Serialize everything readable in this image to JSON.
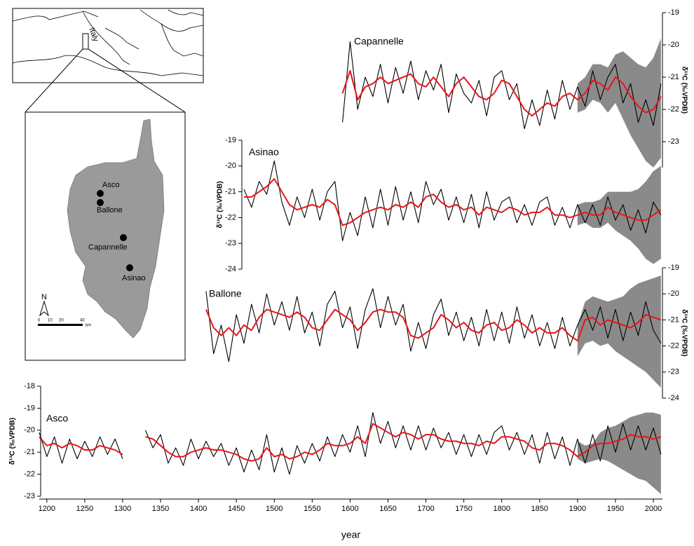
{
  "chart_data": [
    {
      "type": "line",
      "title": "Capannelle",
      "ylabel": "δ¹³C (‰VPDB)",
      "xlim": [
        1190,
        2012
      ],
      "ylim": [
        -23.8,
        -19
      ],
      "yticks": [
        -19,
        -20,
        -21,
        -22,
        -23
      ],
      "x": [
        1590,
        1600,
        1610,
        1620,
        1630,
        1640,
        1650,
        1660,
        1670,
        1680,
        1690,
        1700,
        1710,
        1720,
        1730,
        1740,
        1750,
        1760,
        1770,
        1780,
        1790,
        1800,
        1810,
        1820,
        1830,
        1840,
        1850,
        1860,
        1870,
        1880,
        1890,
        1900,
        1910,
        1920,
        1930,
        1940,
        1950,
        1960,
        1970,
        1980,
        1990,
        2000,
        2010
      ],
      "series": [
        {
          "color": "#000000",
          "values": [
            -22.4,
            -19.9,
            -22.0,
            -21.0,
            -21.6,
            -20.6,
            -21.8,
            -20.7,
            -21.5,
            -20.5,
            -21.7,
            -20.8,
            -21.4,
            -20.6,
            -22.1,
            -20.9,
            -21.5,
            -21.8,
            -21.1,
            -22.2,
            -21.0,
            -20.8,
            -21.7,
            -21.2,
            -22.6,
            -21.7,
            -22.5,
            -21.4,
            -22.3,
            -21.1,
            -22.0,
            -21.3,
            -21.9,
            -20.8,
            -21.7,
            -21.0,
            -20.6,
            -21.8,
            -21.2,
            -22.4,
            -21.7,
            -22.5,
            -21.2
          ]
        },
        {
          "color": "#e8141b",
          "values": [
            -21.5,
            -20.8,
            -21.7,
            -21.3,
            -21.2,
            -21.0,
            -21.2,
            -21.1,
            -21.0,
            -20.9,
            -21.2,
            -21.3,
            -21.0,
            -21.3,
            -21.6,
            -21.2,
            -21.0,
            -21.3,
            -21.6,
            -21.7,
            -21.5,
            -21.1,
            -21.2,
            -21.6,
            -22.0,
            -22.2,
            -22.0,
            -21.8,
            -21.9,
            -21.6,
            -21.5,
            -21.7,
            -21.5,
            -21.1,
            -21.2,
            -21.4,
            -21.0,
            -21.2,
            -21.6,
            -21.9,
            -22.1,
            -22.0,
            -21.6
          ]
        }
      ],
      "band": {
        "color": "#8a8a8a",
        "x": [
          1900,
          1910,
          1920,
          1930,
          1940,
          1950,
          1960,
          1970,
          1980,
          1990,
          2000,
          2010
        ],
        "lower": [
          -22.1,
          -22.0,
          -21.7,
          -21.8,
          -22.1,
          -21.8,
          -22.3,
          -22.8,
          -23.2,
          -23.6,
          -23.8,
          -23.5
        ],
        "upper": [
          -21.2,
          -21.0,
          -20.6,
          -20.6,
          -20.7,
          -20.3,
          -20.2,
          -20.4,
          -20.6,
          -20.7,
          -20.4,
          -19.8
        ]
      }
    },
    {
      "type": "line",
      "title": "Asinao",
      "ylabel": "δ¹³C (‰VPDB)",
      "xlim": [
        1190,
        2012
      ],
      "ylim": [
        -24,
        -19
      ],
      "yticks": [
        -19,
        -20,
        -21,
        -22,
        -23,
        -24
      ],
      "x": [
        1460,
        1470,
        1480,
        1490,
        1500,
        1510,
        1520,
        1530,
        1540,
        1550,
        1560,
        1570,
        1580,
        1590,
        1600,
        1610,
        1620,
        1630,
        1640,
        1650,
        1660,
        1670,
        1680,
        1690,
        1700,
        1710,
        1720,
        1730,
        1740,
        1750,
        1760,
        1770,
        1780,
        1790,
        1800,
        1810,
        1820,
        1830,
        1840,
        1850,
        1860,
        1870,
        1880,
        1890,
        1900,
        1910,
        1920,
        1930,
        1940,
        1950,
        1960,
        1970,
        1980,
        1990,
        2000,
        2010
      ],
      "series": [
        {
          "color": "#000000",
          "values": [
            -20.9,
            -21.6,
            -20.6,
            -21.1,
            -19.8,
            -21.4,
            -22.3,
            -21.2,
            -22.0,
            -20.9,
            -22.1,
            -21.0,
            -20.6,
            -22.9,
            -21.8,
            -22.7,
            -21.2,
            -22.4,
            -20.9,
            -22.3,
            -20.8,
            -22.1,
            -21.0,
            -22.2,
            -20.6,
            -21.5,
            -20.9,
            -22.1,
            -21.2,
            -22.2,
            -21.1,
            -22.4,
            -21.0,
            -22.1,
            -21.4,
            -21.2,
            -22.2,
            -21.5,
            -22.3,
            -21.4,
            -21.2,
            -22.3,
            -21.6,
            -22.4,
            -21.5,
            -22.2,
            -21.5,
            -22.3,
            -21.2,
            -22.1,
            -21.5,
            -22.5,
            -21.7,
            -22.6,
            -21.4,
            -21.9
          ]
        },
        {
          "color": "#e8141b",
          "values": [
            -21.2,
            -21.2,
            -21.0,
            -20.8,
            -20.5,
            -21.0,
            -21.5,
            -21.7,
            -21.6,
            -21.5,
            -21.6,
            -21.3,
            -21.5,
            -22.3,
            -22.2,
            -22.0,
            -21.8,
            -21.7,
            -21.6,
            -21.7,
            -21.5,
            -21.6,
            -21.4,
            -21.6,
            -21.2,
            -21.1,
            -21.4,
            -21.6,
            -21.5,
            -21.7,
            -21.6,
            -21.9,
            -21.6,
            -21.7,
            -21.8,
            -21.6,
            -21.7,
            -21.9,
            -21.8,
            -21.8,
            -21.6,
            -21.9,
            -21.9,
            -22.0,
            -21.9,
            -21.8,
            -21.9,
            -21.9,
            -21.6,
            -21.8,
            -21.9,
            -22.0,
            -22.1,
            -22.1,
            -21.9,
            -21.7
          ]
        }
      ],
      "band": {
        "color": "#8a8a8a",
        "x": [
          1900,
          1910,
          1920,
          1930,
          1940,
          1950,
          1960,
          1970,
          1980,
          1990,
          2000,
          2010
        ],
        "lower": [
          -22.3,
          -22.2,
          -22.4,
          -22.4,
          -22.2,
          -22.5,
          -22.7,
          -22.9,
          -23.2,
          -23.6,
          -23.8,
          -23.6
        ],
        "upper": [
          -21.5,
          -21.4,
          -21.4,
          -21.3,
          -21.0,
          -21.0,
          -21.0,
          -21.0,
          -20.9,
          -20.6,
          -20.2,
          -20.0
        ]
      }
    },
    {
      "type": "line",
      "title": "Ballone",
      "ylabel": "δ¹³C (‰VPDB)",
      "xlim": [
        1190,
        2012
      ],
      "ylim": [
        -24,
        -19
      ],
      "yticks": [
        -19,
        -20,
        -21,
        -22,
        -23,
        -24
      ],
      "x": [
        1410,
        1420,
        1430,
        1440,
        1450,
        1460,
        1470,
        1480,
        1490,
        1500,
        1510,
        1520,
        1530,
        1540,
        1550,
        1560,
        1570,
        1580,
        1590,
        1600,
        1610,
        1620,
        1630,
        1640,
        1650,
        1660,
        1670,
        1680,
        1690,
        1700,
        1710,
        1720,
        1730,
        1740,
        1750,
        1760,
        1770,
        1780,
        1790,
        1800,
        1810,
        1820,
        1830,
        1840,
        1850,
        1860,
        1870,
        1880,
        1890,
        1900,
        1910,
        1920,
        1930,
        1940,
        1950,
        1960,
        1970,
        1980,
        1990,
        2000,
        2010
      ],
      "series": [
        {
          "color": "#000000",
          "values": [
            -19.9,
            -22.3,
            -21.2,
            -22.6,
            -20.8,
            -21.9,
            -20.4,
            -21.5,
            -20.0,
            -21.2,
            -20.3,
            -21.4,
            -20.1,
            -21.5,
            -20.7,
            -22.0,
            -20.4,
            -19.9,
            -21.3,
            -20.5,
            -22.1,
            -20.6,
            -19.8,
            -21.3,
            -20.1,
            -21.2,
            -20.4,
            -22.2,
            -21.1,
            -22.1,
            -20.8,
            -20.2,
            -21.6,
            -20.7,
            -21.8,
            -20.9,
            -22.0,
            -20.6,
            -21.8,
            -20.7,
            -21.9,
            -20.5,
            -21.7,
            -20.8,
            -22.0,
            -21.1,
            -22.1,
            -20.9,
            -22.0,
            -21.2,
            -20.6,
            -21.4,
            -20.5,
            -21.7,
            -20.6,
            -21.8,
            -20.7,
            -21.6,
            -20.3,
            -21.4,
            -21.9
          ]
        },
        {
          "color": "#e8141b",
          "values": [
            -20.6,
            -21.3,
            -21.6,
            -21.3,
            -21.6,
            -21.2,
            -21.4,
            -20.9,
            -20.6,
            -20.7,
            -20.8,
            -20.9,
            -20.7,
            -20.9,
            -21.3,
            -21.4,
            -21.0,
            -20.6,
            -20.8,
            -21.0,
            -21.4,
            -21.1,
            -20.7,
            -20.6,
            -20.7,
            -20.7,
            -20.9,
            -21.6,
            -21.7,
            -21.5,
            -21.3,
            -20.8,
            -21.0,
            -21.3,
            -21.1,
            -21.4,
            -21.5,
            -21.2,
            -21.1,
            -21.4,
            -21.3,
            -21.0,
            -21.2,
            -21.5,
            -21.3,
            -21.5,
            -21.5,
            -21.3,
            -21.6,
            -21.8,
            -21.0,
            -20.9,
            -21.2,
            -21.0,
            -21.1,
            -21.2,
            -21.3,
            -21.1,
            -20.8,
            -20.9,
            -21.0
          ]
        }
      ],
      "band": {
        "color": "#8a8a8a",
        "x": [
          1900,
          1910,
          1920,
          1930,
          1940,
          1950,
          1960,
          1970,
          1980,
          1990,
          2000,
          2010
        ],
        "lower": [
          -22.4,
          -21.9,
          -21.8,
          -22.0,
          -21.9,
          -22.2,
          -22.4,
          -22.6,
          -22.8,
          -23.0,
          -23.3,
          -23.6
        ],
        "upper": [
          -21.2,
          -20.3,
          -20.1,
          -20.2,
          -20.3,
          -20.2,
          -20.1,
          -19.8,
          -19.6,
          -19.5,
          -19.4,
          -19.3
        ]
      }
    },
    {
      "type": "line",
      "title": "Asco",
      "ylabel": "δ¹³C (‰VPDB)",
      "xlabel": "year",
      "xlim": [
        1190,
        2012
      ],
      "ylim": [
        -23,
        -18
      ],
      "yticks": [
        -18,
        -19,
        -20,
        -21,
        -22,
        -23
      ],
      "xticks": [
        1200,
        1250,
        1300,
        1350,
        1400,
        1450,
        1500,
        1550,
        1600,
        1650,
        1700,
        1750,
        1800,
        1850,
        1900,
        1950,
        2000
      ],
      "x": [
        1190,
        1200,
        1210,
        1220,
        1230,
        1240,
        1250,
        1260,
        1270,
        1280,
        1290,
        1300,
        1310,
        1320,
        1330,
        1340,
        1350,
        1360,
        1370,
        1380,
        1390,
        1400,
        1410,
        1420,
        1430,
        1440,
        1450,
        1460,
        1470,
        1480,
        1490,
        1500,
        1510,
        1520,
        1530,
        1540,
        1550,
        1560,
        1570,
        1580,
        1590,
        1600,
        1610,
        1620,
        1630,
        1640,
        1650,
        1660,
        1670,
        1680,
        1690,
        1700,
        1710,
        1720,
        1730,
        1740,
        1750,
        1760,
        1770,
        1780,
        1790,
        1800,
        1810,
        1820,
        1830,
        1840,
        1850,
        1860,
        1870,
        1880,
        1890,
        1900,
        1910,
        1920,
        1930,
        1940,
        1950,
        1960,
        1970,
        1980,
        1990,
        2000,
        2010
      ],
      "series": [
        {
          "color": "#000000",
          "values": [
            -20.1,
            -21.2,
            -20.3,
            -21.5,
            -20.4,
            -21.3,
            -20.5,
            -21.2,
            -20.3,
            -21.1,
            -20.4,
            -21.3,
            null,
            null,
            -20.0,
            -20.8,
            -20.2,
            -21.5,
            -20.8,
            -21.6,
            -20.4,
            -21.3,
            -20.5,
            -21.2,
            -20.6,
            -21.6,
            -20.8,
            -21.9,
            -20.9,
            -21.8,
            -20.2,
            -21.9,
            -20.8,
            -22.0,
            -20.7,
            -21.5,
            -20.6,
            -21.4,
            -20.3,
            -21.2,
            -20.2,
            -21.0,
            -19.8,
            -21.2,
            -19.2,
            -20.6,
            -19.6,
            -20.8,
            -19.8,
            -20.9,
            -19.8,
            -20.9,
            -19.9,
            -20.8,
            -20.1,
            -21.1,
            -20.2,
            -21.2,
            -20.2,
            -21.1,
            -20.1,
            -19.8,
            -20.9,
            -20.1,
            -21.1,
            -20.2,
            -21.5,
            -20.1,
            -21.3,
            -20.3,
            -21.6,
            -20.4,
            -21.5,
            -20.2,
            -21.4,
            -19.8,
            -21.0,
            -19.7,
            -20.9,
            -19.8,
            -20.9,
            -19.9,
            -21.1
          ]
        },
        {
          "color": "#e8141b",
          "values": [
            -20.3,
            -20.7,
            -20.6,
            -20.8,
            -20.6,
            -20.7,
            -20.9,
            -20.9,
            -20.7,
            -20.8,
            -20.9,
            -21.1,
            null,
            null,
            -20.3,
            -20.4,
            -20.7,
            -21.0,
            -21.2,
            -21.2,
            -21.0,
            -20.9,
            -20.8,
            -20.9,
            -20.9,
            -21.0,
            -21.1,
            -21.3,
            -21.4,
            -21.3,
            -20.8,
            -21.2,
            -21.1,
            -21.3,
            -21.2,
            -21.0,
            -21.1,
            -20.9,
            -20.6,
            -20.7,
            -20.7,
            -20.6,
            -20.3,
            -20.6,
            -19.7,
            -19.9,
            -20.1,
            -20.3,
            -20.1,
            -20.2,
            -20.4,
            -20.2,
            -20.2,
            -20.4,
            -20.5,
            -20.5,
            -20.6,
            -20.6,
            -20.7,
            -20.5,
            -20.6,
            -20.3,
            -20.3,
            -20.4,
            -20.5,
            -20.8,
            -20.9,
            -20.6,
            -20.6,
            -20.7,
            -20.9,
            -21.2,
            -21.0,
            -20.7,
            -20.6,
            -20.6,
            -20.5,
            -20.4,
            -20.2,
            -20.3,
            -20.3,
            -20.4,
            -20.3
          ]
        }
      ],
      "band": {
        "color": "#8a8a8a",
        "x": [
          1900,
          1910,
          1920,
          1930,
          1940,
          1950,
          1960,
          1970,
          1980,
          1990,
          2000,
          2010
        ],
        "lower": [
          -21.3,
          -21.5,
          -21.4,
          -21.3,
          -21.4,
          -21.6,
          -21.8,
          -22.0,
          -22.2,
          -22.3,
          -22.6,
          -22.9
        ],
        "upper": [
          -20.5,
          -20.7,
          -20.6,
          -20.1,
          -19.9,
          -19.8,
          -19.6,
          -19.4,
          -19.3,
          -19.2,
          -19.2,
          -19.3
        ]
      }
    }
  ],
  "map": {
    "country": "Italy",
    "sites": [
      "Asco",
      "Ballone",
      "Capannelle",
      "Asinao"
    ],
    "north": "N",
    "scale": [
      "0",
      "10",
      "20",
      "40",
      "km"
    ]
  }
}
